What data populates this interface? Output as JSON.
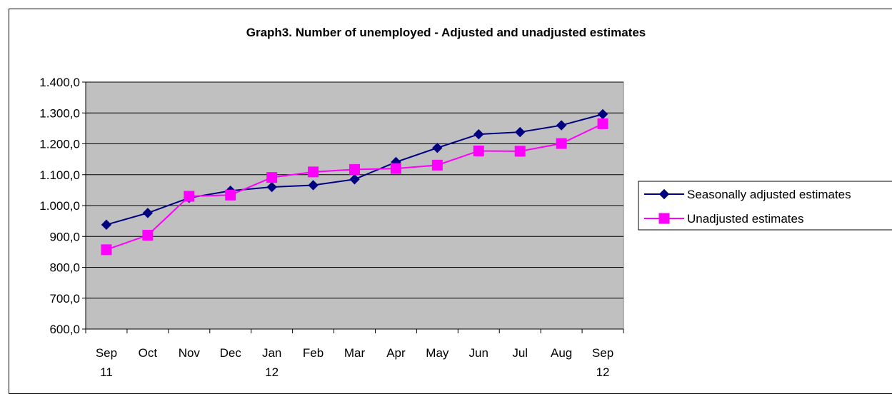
{
  "chart_data": {
    "type": "line",
    "title": "Graph3. Number of unemployed - Adjusted and unadjusted estimates",
    "categories": [
      [
        "Sep",
        "11"
      ],
      [
        "Oct",
        ""
      ],
      [
        "Nov",
        ""
      ],
      [
        "Dec",
        ""
      ],
      [
        "Jan",
        "12"
      ],
      [
        "Feb",
        ""
      ],
      [
        "Mar",
        ""
      ],
      [
        "Apr",
        ""
      ],
      [
        "May",
        ""
      ],
      [
        "Jun",
        ""
      ],
      [
        "Jul",
        ""
      ],
      [
        "Aug",
        ""
      ],
      [
        "Sep",
        "12"
      ]
    ],
    "ylim": [
      600,
      1400
    ],
    "yticks": [
      600,
      700,
      800,
      900,
      1000,
      1100,
      1200,
      1300,
      1400
    ],
    "ytick_labels": [
      "600,0",
      "700,0",
      "800,0",
      "900,0",
      "1.000,0",
      "1.100,0",
      "1.200,0",
      "1.300,0",
      "1.400,0"
    ],
    "grid": true,
    "legend_position": "right",
    "plot_background": "#c0c0c0",
    "series": [
      {
        "name": "Seasonally adjusted estimates",
        "color": "#000080",
        "marker": "diamond",
        "values": [
          938,
          976,
          1025,
          1048,
          1060,
          1066,
          1085,
          1141,
          1187,
          1231,
          1238,
          1260,
          1296
        ]
      },
      {
        "name": "Unadjusted estimates",
        "color": "#ff00ff",
        "marker": "square",
        "values": [
          857,
          904,
          1030,
          1034,
          1091,
          1109,
          1117,
          1120,
          1131,
          1177,
          1176,
          1201,
          1265
        ]
      }
    ]
  }
}
